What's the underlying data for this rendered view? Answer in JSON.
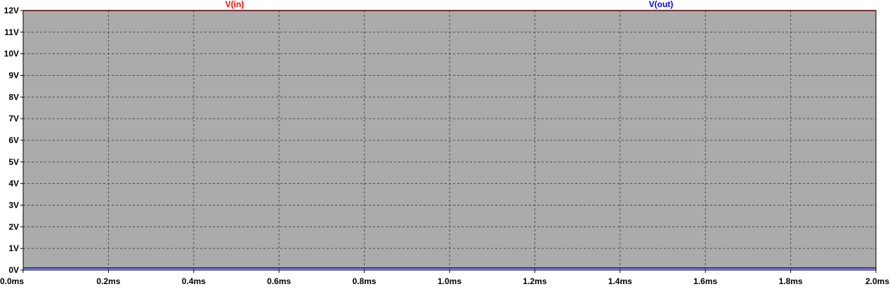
{
  "chart_data": {
    "type": "line",
    "title": "",
    "xlabel": "",
    "ylabel": "",
    "x_unit": "ms",
    "y_unit": "V",
    "xlim": [
      0.0,
      2.0
    ],
    "ylim": [
      0,
      12
    ],
    "grid": true,
    "grid_style": "dashed",
    "x_ticks": [
      "0.0ms",
      "0.2ms",
      "0.4ms",
      "0.6ms",
      "0.8ms",
      "1.0ms",
      "1.2ms",
      "1.4ms",
      "1.6ms",
      "1.8ms",
      "2.0ms"
    ],
    "x_tick_values": [
      0.0,
      0.2,
      0.4,
      0.6,
      0.8,
      1.0,
      1.2,
      1.4,
      1.6,
      1.8,
      2.0
    ],
    "y_ticks": [
      "12V",
      "11V",
      "10V",
      "9V",
      "8V",
      "7V",
      "6V",
      "5V",
      "4V",
      "3V",
      "2V",
      "1V",
      "0V"
    ],
    "y_tick_values": [
      12,
      11,
      10,
      9,
      8,
      7,
      6,
      5,
      4,
      3,
      2,
      1,
      0
    ],
    "series": [
      {
        "name": "V(in)",
        "color": "#ff0000",
        "x": [
          0.0,
          2.0
        ],
        "y": [
          12.0,
          12.0
        ]
      },
      {
        "name": "V(out)",
        "color": "#0000ff",
        "x": [
          0.0,
          2.0
        ],
        "y": [
          0.1,
          0.1
        ]
      }
    ],
    "colors": {
      "plot_background": "#ababab",
      "page_background": "#ffffff",
      "grid": "#4a4a4a",
      "axis": "#000000",
      "text": "#000000"
    }
  }
}
